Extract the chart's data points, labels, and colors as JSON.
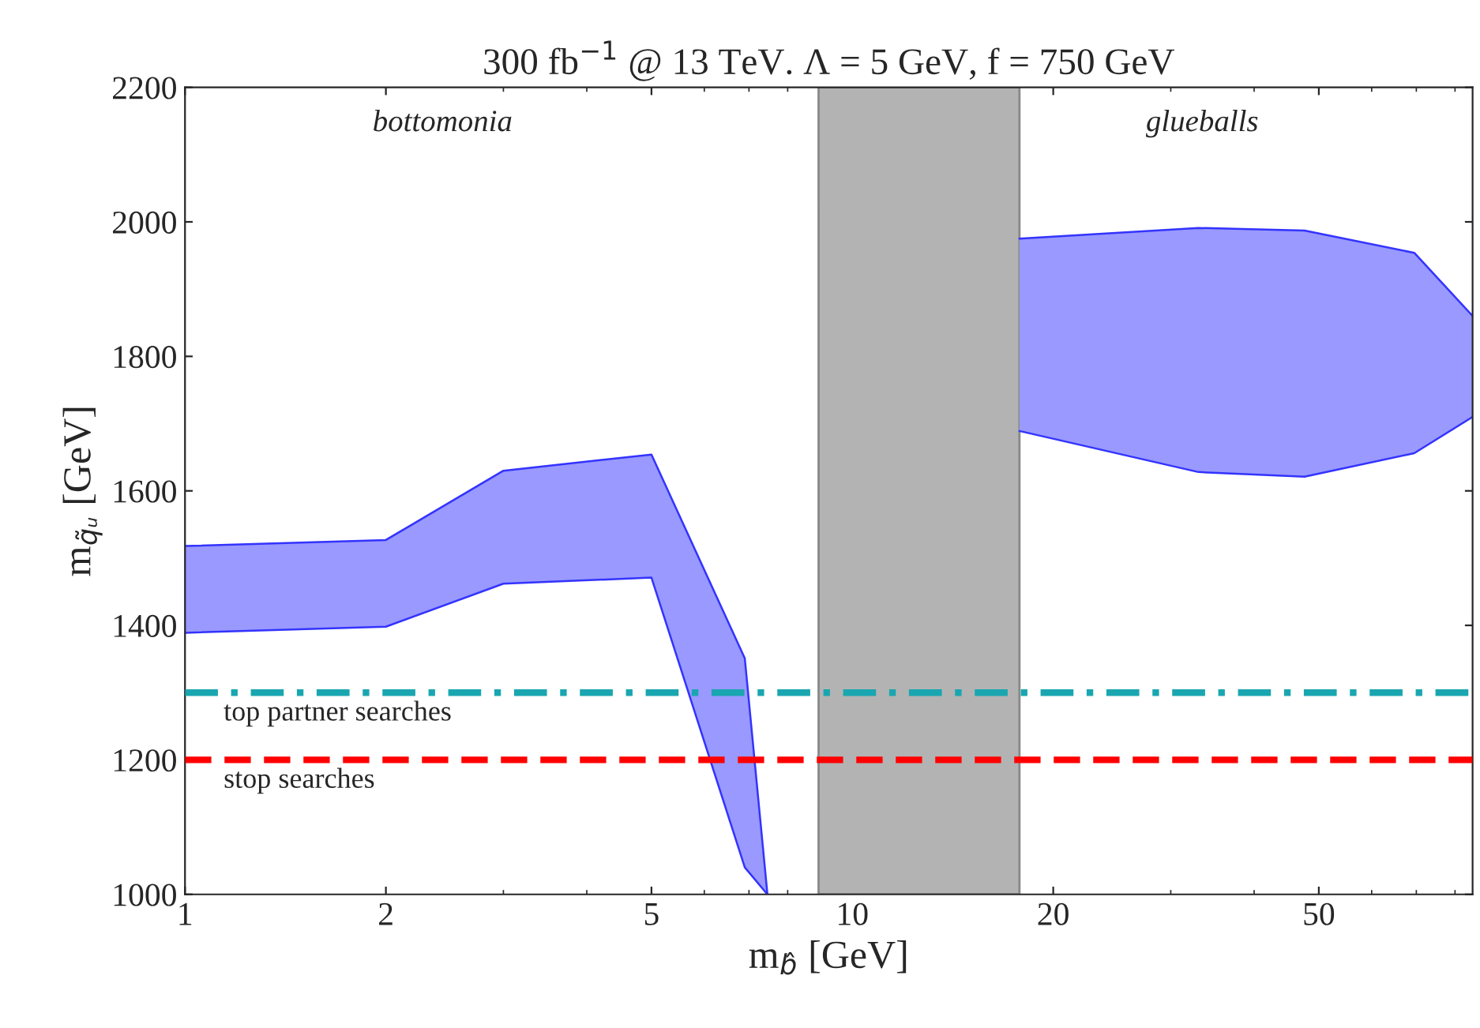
{
  "chart_data": {
    "type": "area",
    "title": "300 fb$^{−1}$ @ 13 TeV. Λ = 5 GeV, f = 750 GeV",
    "xlabel": "m$_{b̂}$ [GeV]",
    "ylabel": "m$_{q̃ᵤ}$ [GeV]",
    "log": "x",
    "xlim": [
      1,
      85
    ],
    "ylim": [
      1000,
      2200
    ],
    "xticks": [
      1,
      2,
      5,
      10,
      20,
      50
    ],
    "yticks": [
      1000,
      1200,
      1400,
      1600,
      1800,
      2000,
      2200
    ],
    "series": [
      {
        "color": "#9999ff",
        "x": [
          1,
          2,
          3,
          5,
          6.9,
          7.46
        ],
        "values": [
          1518,
          1527,
          1630,
          1654,
          1351,
          1000
        ]
      },
      {
        "type": "line",
        "color": "#3333ff",
        "x": [
          1,
          2,
          3,
          5,
          6.9,
          7.46
        ],
        "values": [
          1389,
          1398,
          1462,
          1471,
          1040,
          1000
        ]
      },
      {
        "color": "#9999ff",
        "x": [
          17.8,
          33,
          47.6,
          69.5,
          85
        ],
        "values": [
          1975,
          1991,
          1987,
          1954,
          1860
        ]
      },
      {
        "type": "line",
        "color": "#3333ff",
        "x": [
          17.8,
          33,
          47.6,
          69.5,
          85
        ],
        "values": [
          1689,
          1628,
          1621,
          1656,
          1710
        ]
      }
    ],
    "bands": [
      {
        "axis": "x",
        "from": 8.9,
        "to": 17.8,
        "color": "#b3b3b3"
      }
    ],
    "ref_lines": [
      {
        "axis": "y",
        "value": 1300,
        "label": "top partner searches",
        "color": "#1aa6b0",
        "line_style": "dashdot"
      },
      {
        "axis": "y",
        "value": 1200,
        "label": "stop searches",
        "color": "#ff0000",
        "line_style": "dashed"
      }
    ],
    "annotations": [
      "bottomonia",
      "glueballs"
    ],
    "grid": false,
    "legend": false
  }
}
